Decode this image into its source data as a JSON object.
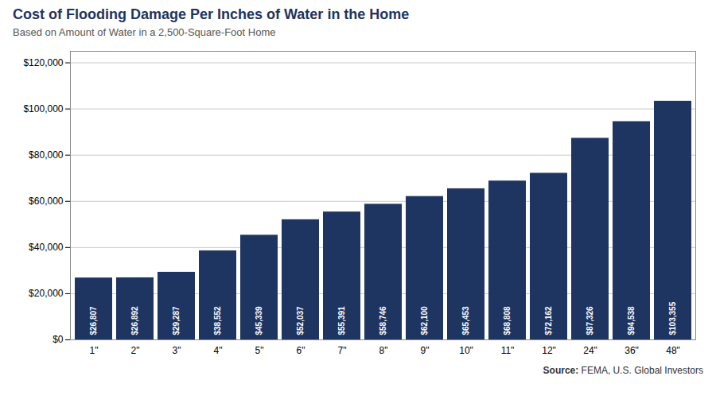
{
  "chart_data": {
    "type": "bar",
    "title": "Cost of Flooding Damage Per Inches of Water in the Home",
    "subtitle": "Based on Amount of Water in a 2,500-Square-Foot Home",
    "source": [
      "Source:",
      "FEMA, U.S. Global Investors"
    ],
    "categories": [
      "1\"",
      "2\"",
      "3\"",
      "4\"",
      "5\"",
      "6\"",
      "7\"",
      "8\"",
      "9\"",
      "10\"",
      "11\"",
      "12\"",
      "24\"",
      "36\"",
      "48\""
    ],
    "values": [
      26807,
      26892,
      29287,
      38552,
      45339,
      52037,
      55391,
      58746,
      62100,
      65453,
      68808,
      72162,
      87326,
      94538,
      103355
    ],
    "value_labels": [
      "$26,807",
      "$26,892",
      "$29,287",
      "$38,552",
      "$45,339",
      "$52,037",
      "$55,391",
      "$58,746",
      "$62,100",
      "$65,453",
      "$68,808",
      "$72,162",
      "$87,326",
      "$94,538",
      "$103,355"
    ],
    "data_labels": true,
    "color": "#1e3461",
    "ylim": [
      0,
      125000
    ],
    "yticks": [
      {
        "value": 0,
        "label": "$0"
      },
      {
        "value": 20000,
        "label": "$20,000"
      },
      {
        "value": 40000,
        "label": "$40,000"
      },
      {
        "value": 60000,
        "label": "$60,000"
      },
      {
        "value": 80000,
        "label": "$80,000"
      },
      {
        "value": 100000,
        "label": "$100,000"
      },
      {
        "value": 120000,
        "label": "$120,000"
      }
    ],
    "grid": true
  }
}
